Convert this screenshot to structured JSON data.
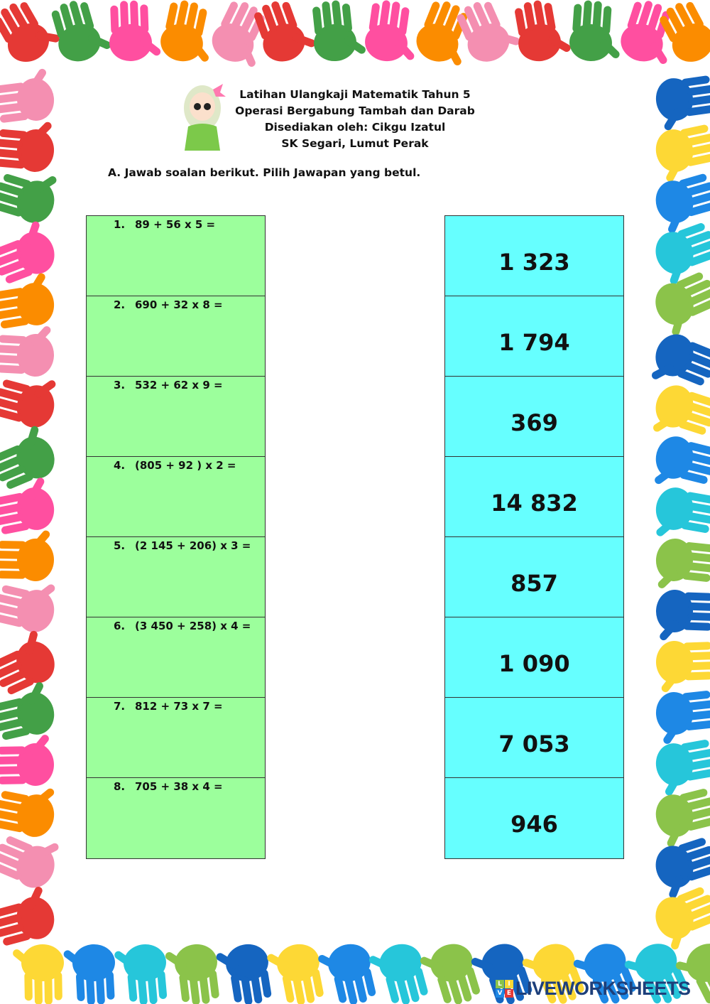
{
  "header": {
    "lines": [
      "Latihan Ulangkaji Matematik Tahun 5",
      "Operasi Bergabung Tambah dan Darab",
      "Disediakan oleh: Cikgu Izatul",
      "SK Segari, Lumut Perak"
    ]
  },
  "instruction": "A.  Jawab soalan berikut. Pilih Jawapan yang betul.",
  "questions": [
    {
      "num": "1.",
      "text": "89 + 56 x 5 ="
    },
    {
      "num": "2.",
      "text": "690 + 32 x 8 ="
    },
    {
      "num": "3.",
      "text": "532 + 62 x 9 ="
    },
    {
      "num": "4.",
      "text": "(805 + 92 ) x 2 ="
    },
    {
      "num": "5.",
      "text": "(2 145 + 206) x 3 ="
    },
    {
      "num": "6.",
      "text": "(3 450 + 258) x 4 ="
    },
    {
      "num": "7.",
      "text": "812 + 73 x 7 ="
    },
    {
      "num": "8.",
      "text": "705 + 38 x 4 ="
    }
  ],
  "answers": [
    "1 323",
    "1 794",
    "369",
    "14 832",
    "857",
    "1 090",
    "7 053",
    "946"
  ],
  "colors": {
    "question_bg": "#9cff9c",
    "answer_bg": "#66ffff",
    "hands": [
      "#e53935",
      "#fdd835",
      "#43a047",
      "#1e88e5",
      "#ff4fa0",
      "#26c6da",
      "#fb8c00",
      "#8bc34a",
      "#f48fb1",
      "#1565c0"
    ]
  },
  "logo": {
    "text": "LIVEWORKSHEETS",
    "letters": [
      "L",
      "I",
      "V",
      "E"
    ]
  }
}
